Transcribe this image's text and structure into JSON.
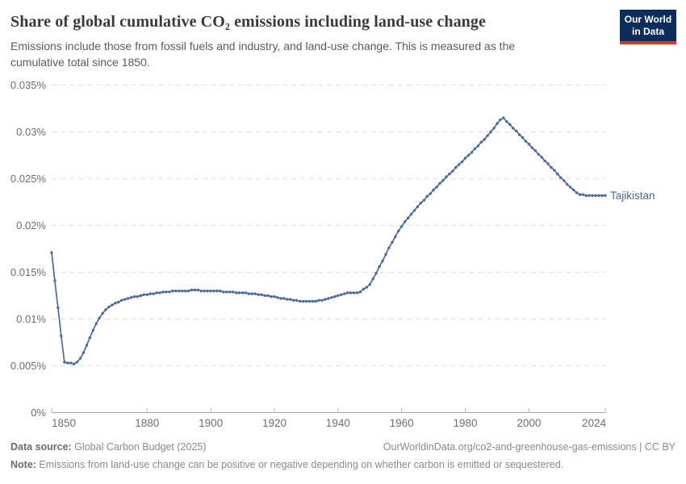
{
  "header": {
    "title": "Share of global cumulative CO₂ emissions including land-use change",
    "subtitle": "Emissions include those from fossil fuels and industry, and land-use change. This is measured as the cumulative total since 1850.",
    "logo": {
      "line1": "Our World",
      "line2": "in Data",
      "bg_color": "#0C2D5C",
      "bar_color": "#DC3530"
    }
  },
  "chart_data": {
    "type": "line",
    "title": "Share of global cumulative CO₂ emissions including land-use change",
    "subtitle": "Emissions include those from fossil fuels and industry, and land-use change. This is measured as the cumulative total since 1850.",
    "entity_label": "Tajikistan",
    "unit": "%",
    "line_color": "#4C6A9C",
    "grid": "dashed-horizontal",
    "legend_position": "right-of-line-end",
    "xlim": [
      1850,
      2024
    ],
    "ylim": [
      0,
      0.035
    ],
    "ytick_values": [
      0,
      0.005,
      0.01,
      0.015,
      0.02,
      0.025,
      0.03,
      0.035
    ],
    "ytick_labels": [
      "0%",
      "0.005%",
      "0.01%",
      "0.015%",
      "0.02%",
      "0.025%",
      "0.03%",
      "0.035%"
    ],
    "xtick_values": [
      1850,
      1880,
      1900,
      1920,
      1940,
      1960,
      1980,
      2000,
      2024
    ],
    "xtick_labels": [
      "1850",
      "1880",
      "1900",
      "1920",
      "1940",
      "1960",
      "1980",
      "2000",
      "2024"
    ],
    "points": [
      [
        1850,
        0.0171
      ],
      [
        1851,
        0.0141
      ],
      [
        1852,
        0.0112
      ],
      [
        1853,
        0.0082
      ],
      [
        1854,
        0.0054
      ],
      [
        1855,
        0.0053
      ],
      [
        1856,
        0.0053
      ],
      [
        1857,
        0.0052
      ],
      [
        1858,
        0.0054
      ],
      [
        1859,
        0.0058
      ],
      [
        1860,
        0.0064
      ],
      [
        1861,
        0.0072
      ],
      [
        1862,
        0.008
      ],
      [
        1863,
        0.0088
      ],
      [
        1864,
        0.0095
      ],
      [
        1865,
        0.0101
      ],
      [
        1866,
        0.0106
      ],
      [
        1867,
        0.011
      ],
      [
        1868,
        0.0113
      ],
      [
        1869,
        0.0115
      ],
      [
        1870,
        0.0117
      ],
      [
        1871,
        0.0118
      ],
      [
        1872,
        0.012
      ],
      [
        1873,
        0.0121
      ],
      [
        1874,
        0.0122
      ],
      [
        1875,
        0.0123
      ],
      [
        1876,
        0.0124
      ],
      [
        1877,
        0.0124
      ],
      [
        1878,
        0.0125
      ],
      [
        1879,
        0.0126
      ],
      [
        1880,
        0.0126
      ],
      [
        1881,
        0.0127
      ],
      [
        1882,
        0.0127
      ],
      [
        1883,
        0.0128
      ],
      [
        1884,
        0.0128
      ],
      [
        1885,
        0.0129
      ],
      [
        1886,
        0.0129
      ],
      [
        1887,
        0.0129
      ],
      [
        1888,
        0.013
      ],
      [
        1889,
        0.013
      ],
      [
        1890,
        0.013
      ],
      [
        1891,
        0.013
      ],
      [
        1892,
        0.013
      ],
      [
        1893,
        0.013
      ],
      [
        1894,
        0.0131
      ],
      [
        1895,
        0.0131
      ],
      [
        1896,
        0.0131
      ],
      [
        1897,
        0.013
      ],
      [
        1898,
        0.013
      ],
      [
        1899,
        0.013
      ],
      [
        1900,
        0.013
      ],
      [
        1901,
        0.013
      ],
      [
        1902,
        0.013
      ],
      [
        1903,
        0.013
      ],
      [
        1904,
        0.0129
      ],
      [
        1905,
        0.0129
      ],
      [
        1906,
        0.0129
      ],
      [
        1907,
        0.0129
      ],
      [
        1908,
        0.0128
      ],
      [
        1909,
        0.0128
      ],
      [
        1910,
        0.0128
      ],
      [
        1911,
        0.0128
      ],
      [
        1912,
        0.0127
      ],
      [
        1913,
        0.0127
      ],
      [
        1914,
        0.0127
      ],
      [
        1915,
        0.0126
      ],
      [
        1916,
        0.0126
      ],
      [
        1917,
        0.0125
      ],
      [
        1918,
        0.0125
      ],
      [
        1919,
        0.0124
      ],
      [
        1920,
        0.0124
      ],
      [
        1921,
        0.0123
      ],
      [
        1922,
        0.0122
      ],
      [
        1923,
        0.0122
      ],
      [
        1924,
        0.0121
      ],
      [
        1925,
        0.0121
      ],
      [
        1926,
        0.012
      ],
      [
        1927,
        0.012
      ],
      [
        1928,
        0.0119
      ],
      [
        1929,
        0.0119
      ],
      [
        1930,
        0.0119
      ],
      [
        1931,
        0.0119
      ],
      [
        1932,
        0.0119
      ],
      [
        1933,
        0.0119
      ],
      [
        1934,
        0.012
      ],
      [
        1935,
        0.012
      ],
      [
        1936,
        0.0121
      ],
      [
        1937,
        0.0122
      ],
      [
        1938,
        0.0123
      ],
      [
        1939,
        0.0124
      ],
      [
        1940,
        0.0125
      ],
      [
        1941,
        0.0126
      ],
      [
        1942,
        0.0127
      ],
      [
        1943,
        0.0128
      ],
      [
        1944,
        0.0128
      ],
      [
        1945,
        0.0128
      ],
      [
        1946,
        0.0128
      ],
      [
        1947,
        0.0129
      ],
      [
        1948,
        0.0132
      ],
      [
        1949,
        0.0134
      ],
      [
        1950,
        0.0137
      ],
      [
        1951,
        0.0143
      ],
      [
        1952,
        0.0149
      ],
      [
        1953,
        0.0156
      ],
      [
        1954,
        0.0162
      ],
      [
        1955,
        0.0169
      ],
      [
        1956,
        0.0176
      ],
      [
        1957,
        0.0182
      ],
      [
        1958,
        0.0188
      ],
      [
        1959,
        0.0194
      ],
      [
        1960,
        0.0199
      ],
      [
        1961,
        0.0204
      ],
      [
        1962,
        0.0208
      ],
      [
        1963,
        0.0212
      ],
      [
        1964,
        0.0216
      ],
      [
        1965,
        0.022
      ],
      [
        1966,
        0.0224
      ],
      [
        1967,
        0.0227
      ],
      [
        1968,
        0.0231
      ],
      [
        1969,
        0.0234
      ],
      [
        1970,
        0.0238
      ],
      [
        1971,
        0.0241
      ],
      [
        1972,
        0.0245
      ],
      [
        1973,
        0.0248
      ],
      [
        1974,
        0.0252
      ],
      [
        1975,
        0.0255
      ],
      [
        1976,
        0.0258
      ],
      [
        1977,
        0.0262
      ],
      [
        1978,
        0.0265
      ],
      [
        1979,
        0.0268
      ],
      [
        1980,
        0.0272
      ],
      [
        1981,
        0.0275
      ],
      [
        1982,
        0.0278
      ],
      [
        1983,
        0.0282
      ],
      [
        1984,
        0.0285
      ],
      [
        1985,
        0.0289
      ],
      [
        1986,
        0.0292
      ],
      [
        1987,
        0.0296
      ],
      [
        1988,
        0.03
      ],
      [
        1989,
        0.0304
      ],
      [
        1990,
        0.0309
      ],
      [
        1991,
        0.0313
      ],
      [
        1992,
        0.0315
      ],
      [
        1993,
        0.0311
      ],
      [
        1994,
        0.0308
      ],
      [
        1995,
        0.0304
      ],
      [
        1996,
        0.0301
      ],
      [
        1997,
        0.0297
      ],
      [
        1998,
        0.0294
      ],
      [
        1999,
        0.029
      ],
      [
        2000,
        0.0287
      ],
      [
        2001,
        0.0283
      ],
      [
        2002,
        0.028
      ],
      [
        2003,
        0.0276
      ],
      [
        2004,
        0.0273
      ],
      [
        2005,
        0.0269
      ],
      [
        2006,
        0.0266
      ],
      [
        2007,
        0.0262
      ],
      [
        2008,
        0.0259
      ],
      [
        2009,
        0.0255
      ],
      [
        2010,
        0.0251
      ],
      [
        2011,
        0.0248
      ],
      [
        2012,
        0.0244
      ],
      [
        2013,
        0.0241
      ],
      [
        2014,
        0.0238
      ],
      [
        2015,
        0.0235
      ],
      [
        2016,
        0.0233
      ],
      [
        2017,
        0.0233
      ],
      [
        2018,
        0.0232
      ],
      [
        2019,
        0.0232
      ],
      [
        2020,
        0.0232
      ],
      [
        2021,
        0.0232
      ],
      [
        2022,
        0.0232
      ],
      [
        2023,
        0.0232
      ],
      [
        2024,
        0.0232
      ]
    ]
  },
  "footer": {
    "source_label": "Data source:",
    "source_value": " Global Carbon Budget (2025)",
    "link": "OurWorldinData.org/co2-and-greenhouse-gas-emissions | CC BY",
    "note_label": "Note:",
    "note_value": " Emissions from land-use change can be positive or negative depending on whether carbon is emitted or sequestered."
  }
}
